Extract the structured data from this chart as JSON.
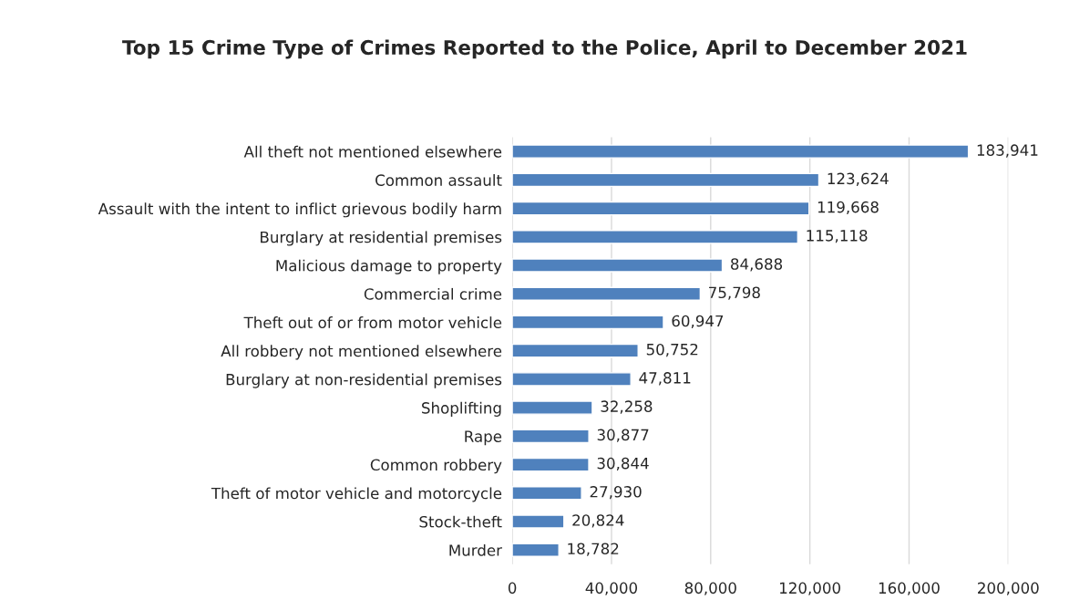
{
  "chart_data": {
    "type": "bar",
    "orientation": "horizontal",
    "title": "Top 15 Crime Type of Crimes Reported to the Police, April to December 2021",
    "categories": [
      "All theft not mentioned elsewhere",
      "Common assault",
      "Assault with the intent to inflict grievous bodily harm",
      "Burglary at residential premises",
      "Malicious damage to property",
      "Commercial crime",
      "Theft out of or from motor vehicle",
      "All robbery not mentioned elsewhere",
      "Burglary at non-residential premises",
      "Shoplifting",
      "Rape",
      "Common robbery",
      "Theft of motor vehicle and motorcycle",
      "Stock-theft",
      "Murder"
    ],
    "values": [
      183941,
      123624,
      119668,
      115118,
      84688,
      75798,
      60947,
      50752,
      47811,
      32258,
      30877,
      30844,
      27930,
      20824,
      18782
    ],
    "value_labels": [
      "183,941",
      "123,624",
      "119,668",
      "115,118",
      "84,688",
      "75,798",
      "60,947",
      "50,752",
      "47,811",
      "32,258",
      "30,877",
      "30,844",
      "27,930",
      "20,824",
      "18,782"
    ],
    "color": "#4f81bd",
    "xlim": [
      0,
      200000
    ],
    "xticks": [
      0,
      {
        "value": 40000,
        "label": "40,000"
      },
      {
        "value": 80000,
        "label": "80,000"
      },
      {
        "value": 120000,
        "label": "120,000"
      },
      {
        "value": 160000,
        "label": "160,000"
      },
      {
        "value": 200000,
        "label": "200,000"
      }
    ],
    "grid": "x"
  }
}
